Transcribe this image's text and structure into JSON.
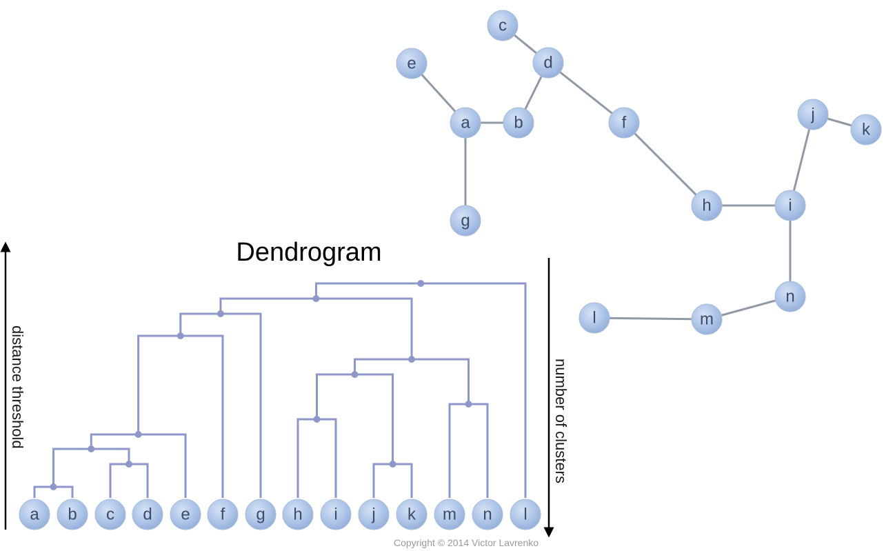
{
  "title": "Dendrogram",
  "copyright": "Copyright © 2014 Victor Lavrenko",
  "axes": {
    "left_label": "distance threshold",
    "right_label": "number of clusters"
  },
  "graph": {
    "nodes": [
      {
        "id": "c",
        "label": "c"
      },
      {
        "id": "d",
        "label": "d"
      },
      {
        "id": "e",
        "label": "e"
      },
      {
        "id": "a",
        "label": "a"
      },
      {
        "id": "b",
        "label": "b"
      },
      {
        "id": "f",
        "label": "f"
      },
      {
        "id": "g",
        "label": "g"
      },
      {
        "id": "j",
        "label": "j"
      },
      {
        "id": "k",
        "label": "k"
      },
      {
        "id": "h",
        "label": "h"
      },
      {
        "id": "i",
        "label": "i"
      },
      {
        "id": "n",
        "label": "n"
      },
      {
        "id": "l",
        "label": "l"
      },
      {
        "id": "m",
        "label": "m"
      }
    ],
    "edges": [
      [
        "c",
        "d"
      ],
      [
        "d",
        "b"
      ],
      [
        "d",
        "f"
      ],
      [
        "e",
        "a"
      ],
      [
        "a",
        "b"
      ],
      [
        "a",
        "g"
      ],
      [
        "f",
        "h"
      ],
      [
        "h",
        "i"
      ],
      [
        "i",
        "j"
      ],
      [
        "j",
        "k"
      ],
      [
        "i",
        "n"
      ],
      [
        "n",
        "m"
      ],
      [
        "m",
        "l"
      ]
    ]
  },
  "dendrogram": {
    "leaves": [
      "a",
      "b",
      "c",
      "d",
      "e",
      "f",
      "g",
      "h",
      "i",
      "j",
      "k",
      "m",
      "n",
      "l"
    ],
    "merges": [
      {
        "left": "a",
        "right": "b",
        "height": 1
      },
      {
        "left": "c",
        "right": "d",
        "height": 2
      },
      {
        "left": "j",
        "right": "k",
        "height": 2
      },
      {
        "left": "ab",
        "right": "cd",
        "height": 3
      },
      {
        "left": "abcd",
        "right": "e",
        "height": 4
      },
      {
        "left": "m",
        "right": "n",
        "height": 5
      },
      {
        "left": "h",
        "right": "i",
        "height": 6
      },
      {
        "left": "hi",
        "right": "jk",
        "height": 7
      },
      {
        "left": "hijk",
        "right": "mn",
        "height": 8
      },
      {
        "left": "abcde",
        "right": "f",
        "height": 9
      },
      {
        "left": "abcdef",
        "right": "g",
        "height": 10
      },
      {
        "left": "abcdefg",
        "right": "hijkmn",
        "height": 11
      },
      {
        "left": "abcdefghijkmn",
        "right": "l",
        "height": 12
      }
    ]
  }
}
